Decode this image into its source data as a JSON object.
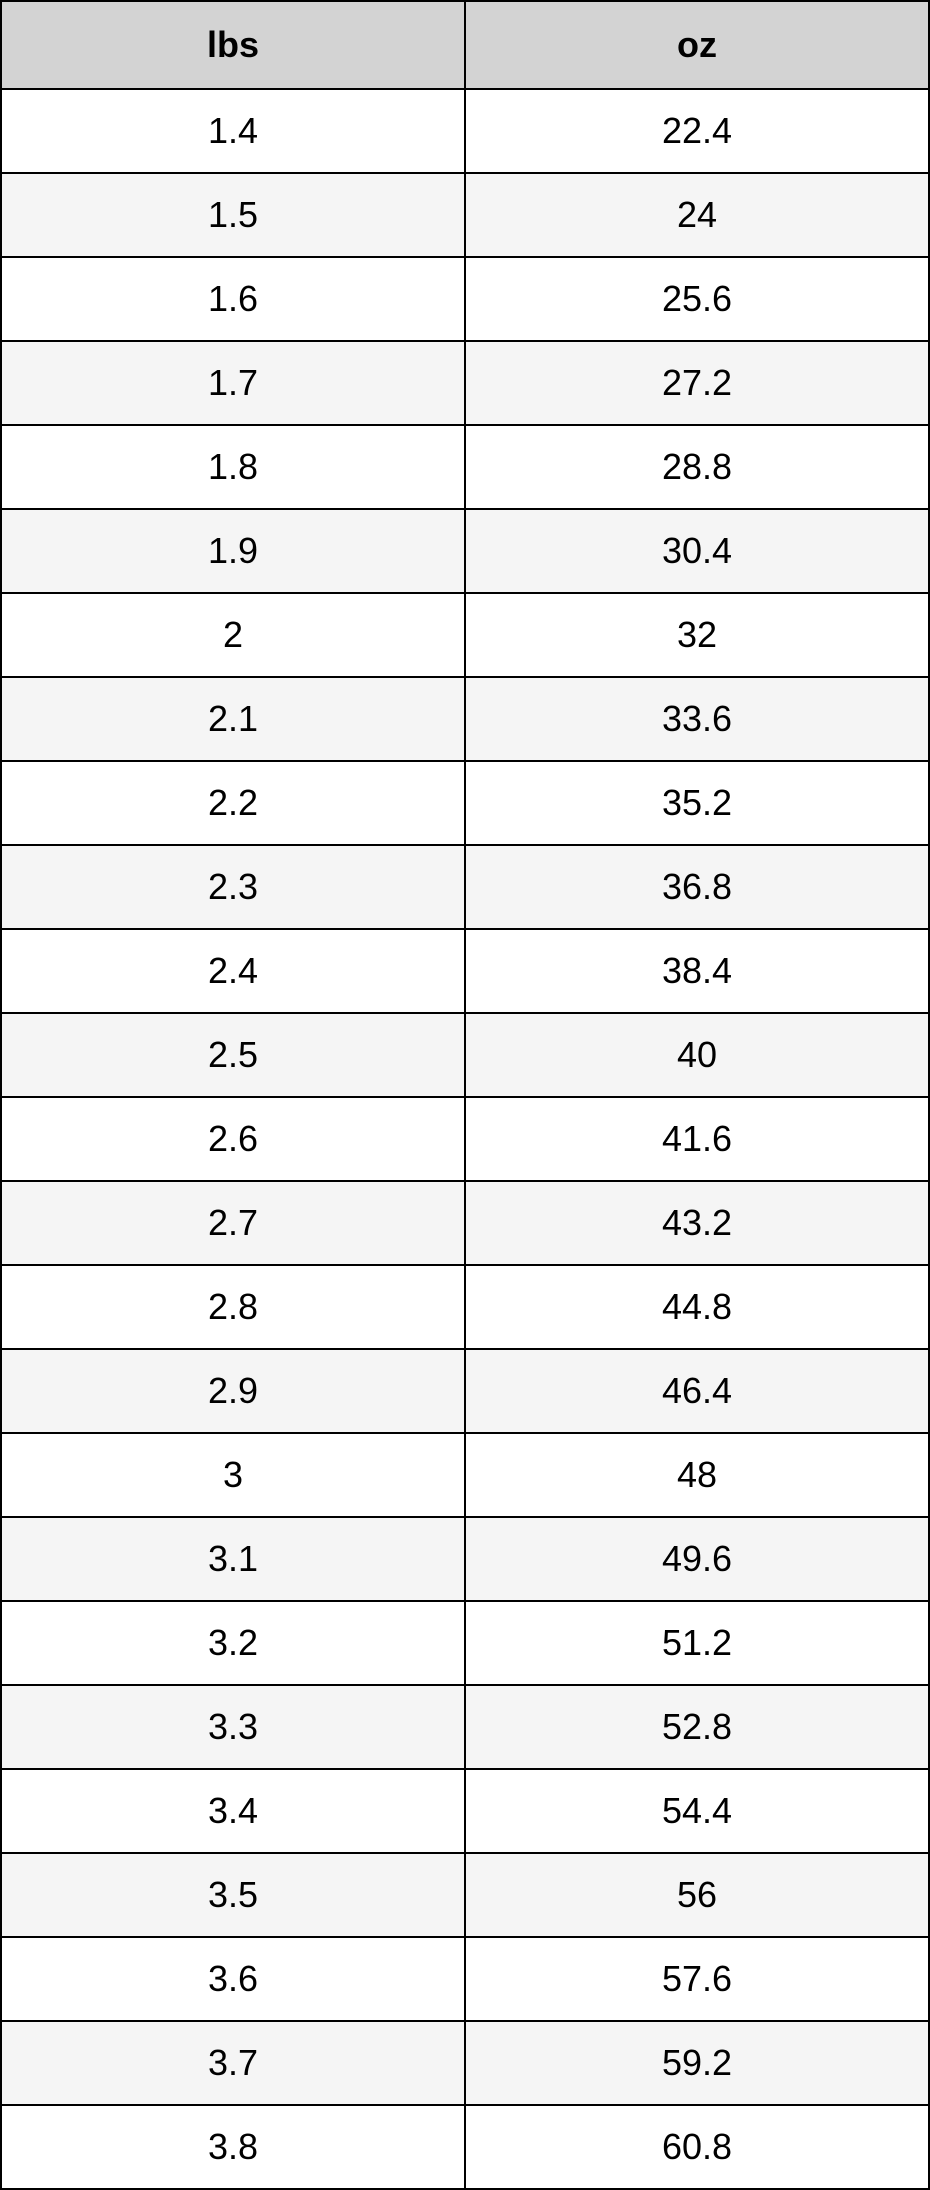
{
  "table": {
    "type": "table",
    "columns": [
      "lbs",
      "oz"
    ],
    "rows": [
      [
        "1.4",
        "22.4"
      ],
      [
        "1.5",
        "24"
      ],
      [
        "1.6",
        "25.6"
      ],
      [
        "1.7",
        "27.2"
      ],
      [
        "1.8",
        "28.8"
      ],
      [
        "1.9",
        "30.4"
      ],
      [
        "2",
        "32"
      ],
      [
        "2.1",
        "33.6"
      ],
      [
        "2.2",
        "35.2"
      ],
      [
        "2.3",
        "36.8"
      ],
      [
        "2.4",
        "38.4"
      ],
      [
        "2.5",
        "40"
      ],
      [
        "2.6",
        "41.6"
      ],
      [
        "2.7",
        "43.2"
      ],
      [
        "2.8",
        "44.8"
      ],
      [
        "2.9",
        "46.4"
      ],
      [
        "3",
        "48"
      ],
      [
        "3.1",
        "49.6"
      ],
      [
        "3.2",
        "51.2"
      ],
      [
        "3.3",
        "52.8"
      ],
      [
        "3.4",
        "54.4"
      ],
      [
        "3.5",
        "56"
      ],
      [
        "3.6",
        "57.6"
      ],
      [
        "3.7",
        "59.2"
      ],
      [
        "3.8",
        "60.8"
      ]
    ],
    "header_background": "#d3d3d3",
    "row_odd_background": "#ffffff",
    "row_even_background": "#f5f5f5",
    "border_color": "#000000",
    "border_width": 2,
    "header_fontsize": 36,
    "header_fontweight": "bold",
    "data_fontsize": 36,
    "column_widths": [
      "50%",
      "50%"
    ],
    "cell_alignment": "center"
  }
}
